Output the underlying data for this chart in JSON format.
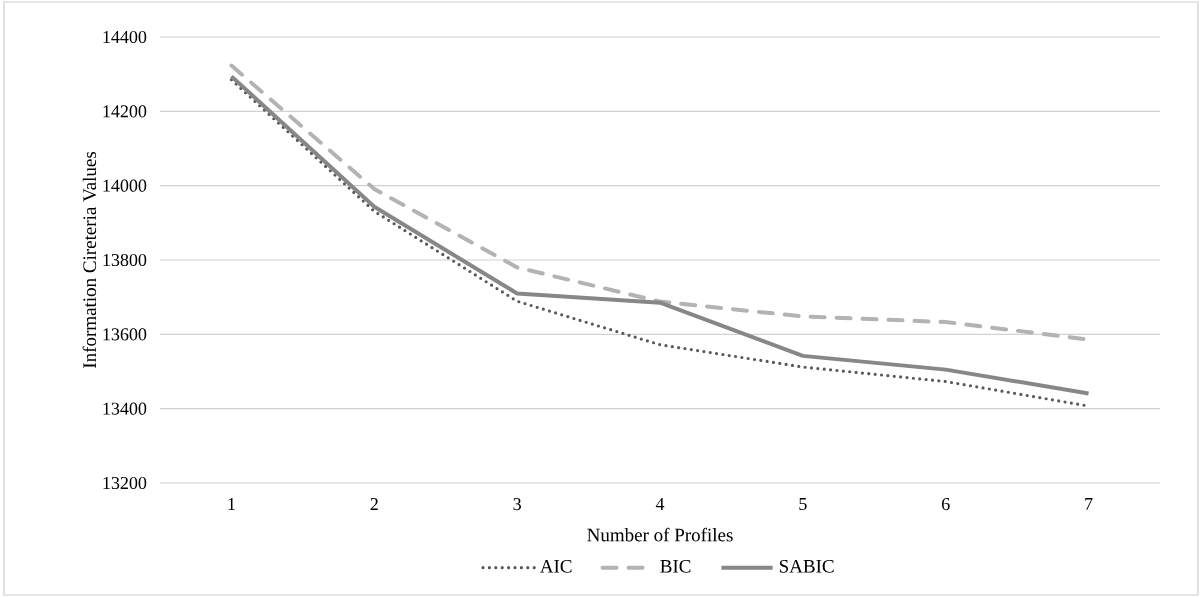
{
  "chart_data": {
    "type": "line",
    "xlabel": "Number of Profiles",
    "ylabel": "Information Cireteria Values",
    "categories": [
      "1",
      "2",
      "3",
      "4",
      "5",
      "6",
      "7"
    ],
    "series": [
      {
        "name": "AIC",
        "color": "#595959",
        "line_style": "dotted",
        "values": [
          14285,
          13931,
          13689,
          13572,
          13512,
          13473,
          13407
        ]
      },
      {
        "name": "BIC",
        "color": "#b3b3b3",
        "line_style": "dashed",
        "values": [
          14323,
          13991,
          13780,
          13688,
          13648,
          13633,
          13586
        ]
      },
      {
        "name": "SABIC",
        "color": "#878787",
        "line_style": "solid",
        "values": [
          14294,
          13943,
          13710,
          13685,
          13542,
          13505,
          13441
        ]
      }
    ],
    "ylim": [
      13200,
      14400
    ],
    "yticks": [
      13200,
      13400,
      13600,
      13800,
      14000,
      14200,
      14400
    ],
    "grid": "y",
    "legend": "bottom"
  }
}
